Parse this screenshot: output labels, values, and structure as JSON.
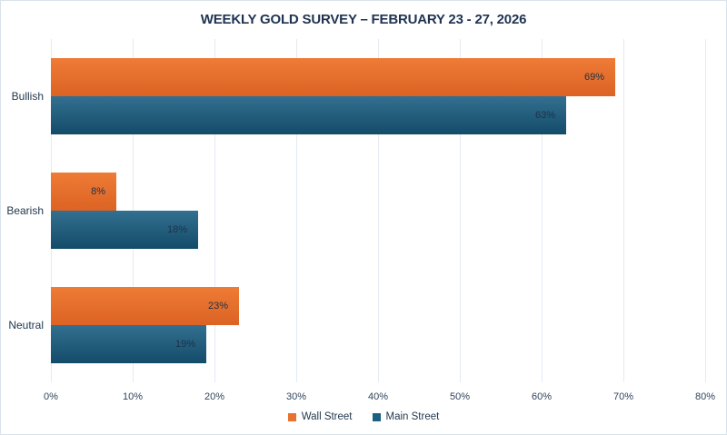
{
  "chart_data": {
    "type": "bar",
    "orientation": "horizontal",
    "title": "WEEKLY GOLD SURVEY – FEBRUARY 23 - 27, 2026",
    "categories": [
      "Bullish",
      "Bearish",
      "Neutral"
    ],
    "series": [
      {
        "name": "Wall Street",
        "values": [
          69,
          8,
          23
        ],
        "color": "#e8722e",
        "color_top": "#ee7b36",
        "color_bottom": "#dc6323"
      },
      {
        "name": "Main Street",
        "values": [
          63,
          18,
          19
        ],
        "color": "#1b6080",
        "color_top": "#336f90",
        "color_bottom": "#134c69"
      }
    ],
    "value_suffix": "%",
    "xlabel": "",
    "ylabel": "",
    "xlim": [
      0,
      80
    ],
    "x_tick_labels": [
      "0%",
      "10%",
      "20%",
      "30%",
      "40%",
      "50%",
      "60%",
      "70%",
      "80%"
    ],
    "grid": "vertical",
    "legend_position": "bottom",
    "data_labels": "inside-end"
  },
  "colors": {
    "title_text": "#1f3350",
    "axis_text": "#31455c",
    "category_text": "#22394f",
    "label_text": "#1e3048",
    "gridline": "#e4ebf2",
    "page_border": "#d9e3ec",
    "background": "#ffffff"
  }
}
